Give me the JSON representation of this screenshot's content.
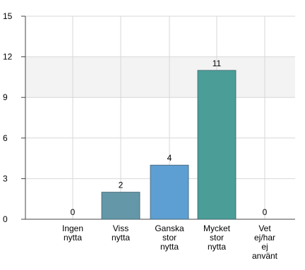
{
  "chart_data": {
    "type": "bar",
    "categories": [
      [
        "Ingen",
        "nytta"
      ],
      [
        "Viss",
        "nytta"
      ],
      [
        "Ganska",
        "stor",
        "nytta"
      ],
      [
        "Mycket",
        "stor",
        "nytta"
      ],
      [
        "Vet",
        "ej/har",
        "ej",
        "använt"
      ]
    ],
    "values": [
      0,
      2,
      4,
      11,
      0
    ],
    "value_labels": [
      "0",
      "2",
      "4",
      "11",
      "0"
    ],
    "y_ticks": [
      "0",
      "3",
      "6",
      "9",
      "12",
      "15"
    ],
    "ylim": [
      0,
      15
    ],
    "title": "",
    "xlabel": "",
    "ylabel": "",
    "grid": true,
    "colors": {
      "bars": [
        "#7aa7b6",
        "#6498a8",
        "#5e9fd3",
        "#4a9e97",
        "#8bbf9f"
      ],
      "bar_stroke": "#3e5f6e",
      "band": "#f3f3f3",
      "grid": "#d7d7d7",
      "axis": "#444444",
      "text": "#000000"
    }
  }
}
